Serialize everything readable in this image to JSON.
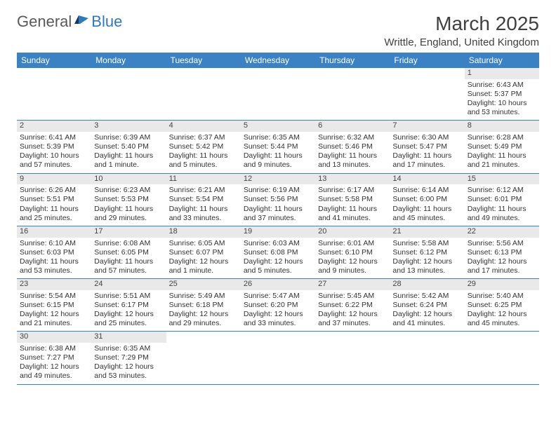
{
  "logo": {
    "general": "General",
    "blue": "Blue"
  },
  "title": "March 2025",
  "location": "Writtle, England, United Kingdom",
  "colors": {
    "header_bg": "#3b82c4",
    "header_text": "#ffffff",
    "daynum_bg": "#e9e9e9",
    "border": "#3b82c4",
    "logo_gray": "#58595b",
    "logo_blue": "#2f7abf"
  },
  "day_headers": [
    "Sunday",
    "Monday",
    "Tuesday",
    "Wednesday",
    "Thursday",
    "Friday",
    "Saturday"
  ],
  "weeks": [
    [
      {
        "n": "",
        "sunrise": "",
        "sunset": "",
        "daylight": ""
      },
      {
        "n": "",
        "sunrise": "",
        "sunset": "",
        "daylight": ""
      },
      {
        "n": "",
        "sunrise": "",
        "sunset": "",
        "daylight": ""
      },
      {
        "n": "",
        "sunrise": "",
        "sunset": "",
        "daylight": ""
      },
      {
        "n": "",
        "sunrise": "",
        "sunset": "",
        "daylight": ""
      },
      {
        "n": "",
        "sunrise": "",
        "sunset": "",
        "daylight": ""
      },
      {
        "n": "1",
        "sunrise": "Sunrise: 6:43 AM",
        "sunset": "Sunset: 5:37 PM",
        "daylight": "Daylight: 10 hours and 53 minutes."
      }
    ],
    [
      {
        "n": "2",
        "sunrise": "Sunrise: 6:41 AM",
        "sunset": "Sunset: 5:39 PM",
        "daylight": "Daylight: 10 hours and 57 minutes."
      },
      {
        "n": "3",
        "sunrise": "Sunrise: 6:39 AM",
        "sunset": "Sunset: 5:40 PM",
        "daylight": "Daylight: 11 hours and 1 minute."
      },
      {
        "n": "4",
        "sunrise": "Sunrise: 6:37 AM",
        "sunset": "Sunset: 5:42 PM",
        "daylight": "Daylight: 11 hours and 5 minutes."
      },
      {
        "n": "5",
        "sunrise": "Sunrise: 6:35 AM",
        "sunset": "Sunset: 5:44 PM",
        "daylight": "Daylight: 11 hours and 9 minutes."
      },
      {
        "n": "6",
        "sunrise": "Sunrise: 6:32 AM",
        "sunset": "Sunset: 5:46 PM",
        "daylight": "Daylight: 11 hours and 13 minutes."
      },
      {
        "n": "7",
        "sunrise": "Sunrise: 6:30 AM",
        "sunset": "Sunset: 5:47 PM",
        "daylight": "Daylight: 11 hours and 17 minutes."
      },
      {
        "n": "8",
        "sunrise": "Sunrise: 6:28 AM",
        "sunset": "Sunset: 5:49 PM",
        "daylight": "Daylight: 11 hours and 21 minutes."
      }
    ],
    [
      {
        "n": "9",
        "sunrise": "Sunrise: 6:26 AM",
        "sunset": "Sunset: 5:51 PM",
        "daylight": "Daylight: 11 hours and 25 minutes."
      },
      {
        "n": "10",
        "sunrise": "Sunrise: 6:23 AM",
        "sunset": "Sunset: 5:53 PM",
        "daylight": "Daylight: 11 hours and 29 minutes."
      },
      {
        "n": "11",
        "sunrise": "Sunrise: 6:21 AM",
        "sunset": "Sunset: 5:54 PM",
        "daylight": "Daylight: 11 hours and 33 minutes."
      },
      {
        "n": "12",
        "sunrise": "Sunrise: 6:19 AM",
        "sunset": "Sunset: 5:56 PM",
        "daylight": "Daylight: 11 hours and 37 minutes."
      },
      {
        "n": "13",
        "sunrise": "Sunrise: 6:17 AM",
        "sunset": "Sunset: 5:58 PM",
        "daylight": "Daylight: 11 hours and 41 minutes."
      },
      {
        "n": "14",
        "sunrise": "Sunrise: 6:14 AM",
        "sunset": "Sunset: 6:00 PM",
        "daylight": "Daylight: 11 hours and 45 minutes."
      },
      {
        "n": "15",
        "sunrise": "Sunrise: 6:12 AM",
        "sunset": "Sunset: 6:01 PM",
        "daylight": "Daylight: 11 hours and 49 minutes."
      }
    ],
    [
      {
        "n": "16",
        "sunrise": "Sunrise: 6:10 AM",
        "sunset": "Sunset: 6:03 PM",
        "daylight": "Daylight: 11 hours and 53 minutes."
      },
      {
        "n": "17",
        "sunrise": "Sunrise: 6:08 AM",
        "sunset": "Sunset: 6:05 PM",
        "daylight": "Daylight: 11 hours and 57 minutes."
      },
      {
        "n": "18",
        "sunrise": "Sunrise: 6:05 AM",
        "sunset": "Sunset: 6:07 PM",
        "daylight": "Daylight: 12 hours and 1 minute."
      },
      {
        "n": "19",
        "sunrise": "Sunrise: 6:03 AM",
        "sunset": "Sunset: 6:08 PM",
        "daylight": "Daylight: 12 hours and 5 minutes."
      },
      {
        "n": "20",
        "sunrise": "Sunrise: 6:01 AM",
        "sunset": "Sunset: 6:10 PM",
        "daylight": "Daylight: 12 hours and 9 minutes."
      },
      {
        "n": "21",
        "sunrise": "Sunrise: 5:58 AM",
        "sunset": "Sunset: 6:12 PM",
        "daylight": "Daylight: 12 hours and 13 minutes."
      },
      {
        "n": "22",
        "sunrise": "Sunrise: 5:56 AM",
        "sunset": "Sunset: 6:13 PM",
        "daylight": "Daylight: 12 hours and 17 minutes."
      }
    ],
    [
      {
        "n": "23",
        "sunrise": "Sunrise: 5:54 AM",
        "sunset": "Sunset: 6:15 PM",
        "daylight": "Daylight: 12 hours and 21 minutes."
      },
      {
        "n": "24",
        "sunrise": "Sunrise: 5:51 AM",
        "sunset": "Sunset: 6:17 PM",
        "daylight": "Daylight: 12 hours and 25 minutes."
      },
      {
        "n": "25",
        "sunrise": "Sunrise: 5:49 AM",
        "sunset": "Sunset: 6:18 PM",
        "daylight": "Daylight: 12 hours and 29 minutes."
      },
      {
        "n": "26",
        "sunrise": "Sunrise: 5:47 AM",
        "sunset": "Sunset: 6:20 PM",
        "daylight": "Daylight: 12 hours and 33 minutes."
      },
      {
        "n": "27",
        "sunrise": "Sunrise: 5:45 AM",
        "sunset": "Sunset: 6:22 PM",
        "daylight": "Daylight: 12 hours and 37 minutes."
      },
      {
        "n": "28",
        "sunrise": "Sunrise: 5:42 AM",
        "sunset": "Sunset: 6:24 PM",
        "daylight": "Daylight: 12 hours and 41 minutes."
      },
      {
        "n": "29",
        "sunrise": "Sunrise: 5:40 AM",
        "sunset": "Sunset: 6:25 PM",
        "daylight": "Daylight: 12 hours and 45 minutes."
      }
    ],
    [
      {
        "n": "30",
        "sunrise": "Sunrise: 6:38 AM",
        "sunset": "Sunset: 7:27 PM",
        "daylight": "Daylight: 12 hours and 49 minutes."
      },
      {
        "n": "31",
        "sunrise": "Sunrise: 6:35 AM",
        "sunset": "Sunset: 7:29 PM",
        "daylight": "Daylight: 12 hours and 53 minutes."
      },
      {
        "n": "",
        "sunrise": "",
        "sunset": "",
        "daylight": ""
      },
      {
        "n": "",
        "sunrise": "",
        "sunset": "",
        "daylight": ""
      },
      {
        "n": "",
        "sunrise": "",
        "sunset": "",
        "daylight": ""
      },
      {
        "n": "",
        "sunrise": "",
        "sunset": "",
        "daylight": ""
      },
      {
        "n": "",
        "sunrise": "",
        "sunset": "",
        "daylight": ""
      }
    ]
  ]
}
